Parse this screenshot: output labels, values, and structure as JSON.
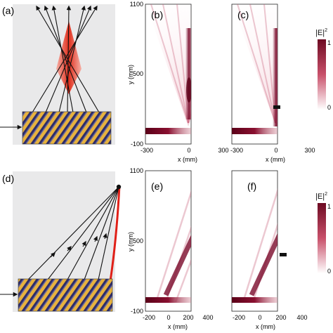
{
  "panel_labels": {
    "a": "(a)",
    "b": "(b)",
    "c": "(c)",
    "d": "(d)",
    "e": "(e)",
    "f": "(f)"
  },
  "top_row": {
    "y_axis_label": "y (mm)",
    "y_ticks": [
      "1100",
      "500",
      "-100"
    ],
    "x_axis_label": "x (mm)",
    "x_ticks": [
      "-300",
      "0",
      "300"
    ]
  },
  "bottom_row": {
    "y_axis_label": "y (mm)",
    "y_ticks": [
      "1100",
      "500",
      "-100"
    ],
    "x_axis_label": "x (mm)",
    "x_ticks": [
      "-200",
      "0",
      "200",
      "400"
    ]
  },
  "colorbar": {
    "label": "|E|",
    "superscript": "2",
    "max": "1",
    "min": "0"
  },
  "colors": {
    "beam_dark": "#7a0a2a",
    "lens_red": "#e0301e",
    "arc_red": "#e02018",
    "panel_bg": "#e9e9ea"
  },
  "chart_data": [
    {
      "type": "heatmap",
      "panel": "(b)",
      "xlabel": "x (mm)",
      "ylabel": "y (mm)",
      "xlim": [
        -300,
        300
      ],
      "ylim": [
        -100,
        1100
      ]
    },
    {
      "type": "heatmap",
      "panel": "(c)",
      "xlabel": "x (mm)",
      "ylabel": "y (mm)",
      "xlim": [
        -300,
        300
      ],
      "ylim": [
        -100,
        1100
      ]
    },
    {
      "type": "heatmap",
      "panel": "(e)",
      "xlabel": "x (mm)",
      "ylabel": "y (mm)",
      "xlim": [
        -200,
        400
      ],
      "ylim": [
        -100,
        1100
      ]
    },
    {
      "type": "heatmap",
      "panel": "(f)",
      "xlabel": "x (mm)",
      "ylabel": "y (mm)",
      "xlim": [
        -200,
        400
      ],
      "ylim": [
        -100,
        1100
      ]
    }
  ]
}
